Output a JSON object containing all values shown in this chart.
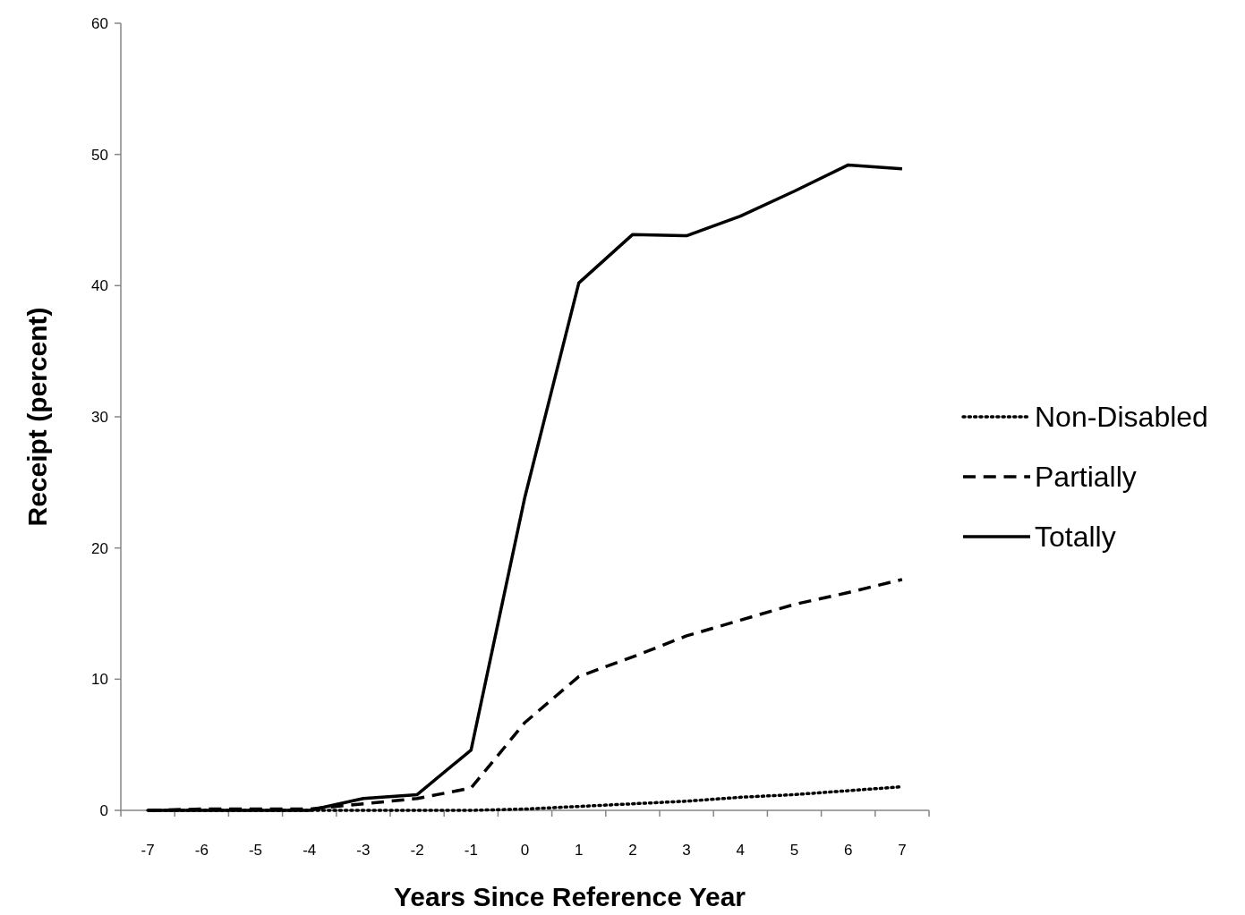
{
  "chart_data": {
    "type": "line",
    "xlabel": "Years Since Reference Year",
    "ylabel": "Receipt (percent)",
    "categories": [
      "-7",
      "-6",
      "-5",
      "-4",
      "-3",
      "-2",
      "-1",
      "0",
      "1",
      "2",
      "3",
      "4",
      "5",
      "6",
      "7"
    ],
    "ylim": [
      0,
      60
    ],
    "yticks": [
      0,
      10,
      20,
      30,
      40,
      50,
      60
    ],
    "grid": false,
    "legend": "right",
    "marker": "none",
    "series": [
      {
        "name": "Non-Disabled",
        "color": "#000000",
        "line_style": "dotted",
        "values": [
          0,
          0,
          0,
          0,
          0,
          0,
          0,
          0.1,
          0.3,
          0.5,
          0.7,
          1.0,
          1.2,
          1.5,
          1.8
        ]
      },
      {
        "name": "Partially",
        "color": "#000000",
        "line_style": "dashed",
        "values": [
          0,
          0.1,
          0.1,
          0.1,
          0.5,
          0.9,
          1.7,
          6.7,
          10.2,
          11.7,
          13.3,
          14.5,
          15.7,
          16.6,
          17.6
        ]
      },
      {
        "name": "Totally",
        "color": "#000000",
        "line_style": "solid",
        "values": [
          0,
          0,
          0,
          0,
          0.9,
          1.2,
          4.6,
          23.9,
          40.2,
          43.9,
          43.8,
          45.3,
          47.2,
          49.2,
          48.9
        ]
      }
    ]
  }
}
